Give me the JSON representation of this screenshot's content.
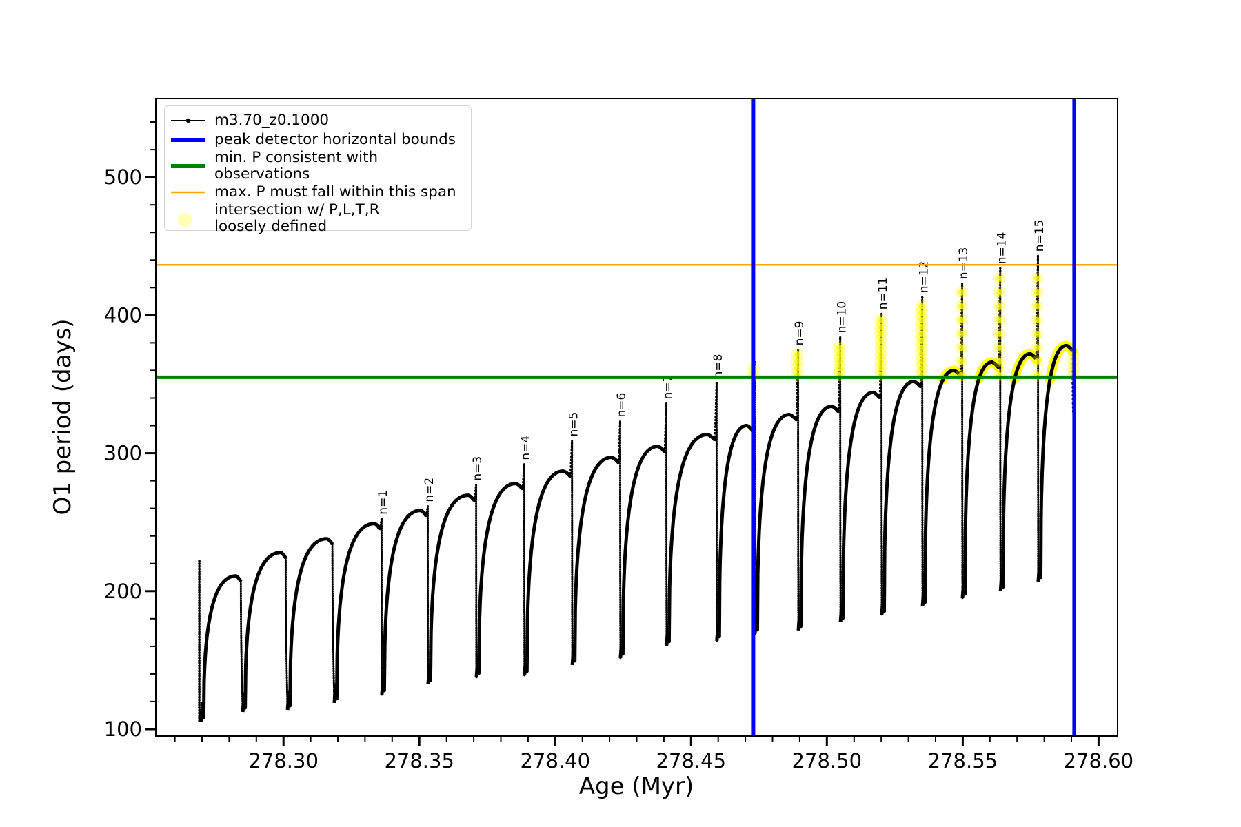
{
  "chart_data": {
    "type": "line",
    "title": "",
    "xlabel": "Age (Myr)",
    "ylabel": "O1 period (days)",
    "xlim": [
      278.253,
      278.607
    ],
    "ylim": [
      95,
      557
    ],
    "xticks": [
      278.3,
      278.35,
      278.4,
      278.45,
      278.5,
      278.55,
      278.6
    ],
    "yticks": [
      100,
      200,
      300,
      400,
      500
    ],
    "minor_xtick_step": 0.01,
    "minor_ytick_step": 20,
    "grid": false,
    "legend_position": "upper left",
    "series_name": "m3.70_z0.1000",
    "series_color": "#000000",
    "hlines": [
      {
        "value": 355.0,
        "color": "#008000",
        "width": 5,
        "label": "min. P consistent with observations"
      },
      {
        "value": 436.5,
        "color": "#ffa500",
        "width": 2.5,
        "label": "max. P must fall within this span"
      }
    ],
    "vlines": [
      {
        "value": 278.473,
        "color": "#0000ff",
        "width": 5,
        "label": "peak detector horizontal bounds"
      },
      {
        "value": 278.591,
        "color": "#0000ff",
        "width": 5,
        "label": "peak detector horizontal bounds"
      }
    ],
    "lead_in": {
      "x": 278.269,
      "y_from": 222,
      "y_to": 105.5
    },
    "cycles": [
      {
        "n": null,
        "min": [
          278.2697,
          105.5
        ],
        "arch": [
          278.2825,
          211.0
        ],
        "spike": [
          278.2843,
          212.0
        ]
      },
      {
        "n": null,
        "min": [
          278.285,
          112.5
        ],
        "arch": [
          278.299,
          228.0
        ],
        "spike": [
          278.3008,
          229.5
        ]
      },
      {
        "n": null,
        "min": [
          278.3015,
          114.0
        ],
        "arch": [
          278.316,
          238.0
        ],
        "spike": [
          278.318,
          240.0
        ]
      },
      {
        "n": "n=1",
        "min": [
          278.3187,
          119.0
        ],
        "arch": [
          278.3335,
          249.0
        ],
        "spike": [
          278.3355,
          252.5
        ]
      },
      {
        "n": "n=2",
        "min": [
          278.3362,
          125.0
        ],
        "arch": [
          278.3505,
          258.5
        ],
        "spike": [
          278.3525,
          261.5
        ]
      },
      {
        "n": "n=3",
        "min": [
          278.3532,
          132.5
        ],
        "arch": [
          278.368,
          269.5
        ],
        "spike": [
          278.3703,
          277.0
        ]
      },
      {
        "n": "n=4",
        "min": [
          278.371,
          137.5
        ],
        "arch": [
          278.3855,
          278.0
        ],
        "spike": [
          278.388,
          292.0
        ]
      },
      {
        "n": "n=5",
        "min": [
          278.3887,
          139.0
        ],
        "arch": [
          278.403,
          287.0
        ],
        "spike": [
          278.4056,
          309.0
        ]
      },
      {
        "n": "n=6",
        "min": [
          278.4063,
          146.5
        ],
        "arch": [
          278.4208,
          297.0
        ],
        "spike": [
          278.4233,
          323.0
        ]
      },
      {
        "n": "n=7",
        "min": [
          278.424,
          151.5
        ],
        "arch": [
          278.4378,
          305.0
        ],
        "spike": [
          278.4403,
          336.0
        ]
      },
      {
        "n": "n=8",
        "min": [
          278.441,
          160.5
        ],
        "arch": [
          278.456,
          313.5
        ],
        "spike": [
          278.4588,
          351.0
        ]
      },
      {
        "n": null,
        "min": [
          278.4595,
          164.0
        ],
        "arch": [
          278.4705,
          320.0
        ],
        "spike": [
          278.4728,
          366.0
        ]
      },
      {
        "n": "n=9",
        "min": [
          278.4735,
          169.0
        ],
        "arch": [
          278.4862,
          328.0
        ],
        "spike": [
          278.4888,
          375.0
        ]
      },
      {
        "n": "n=10",
        "min": [
          278.4895,
          171.5
        ],
        "arch": [
          278.5018,
          334.0
        ],
        "spike": [
          278.5043,
          384.0
        ]
      },
      {
        "n": "n=11",
        "min": [
          278.505,
          177.5
        ],
        "arch": [
          278.517,
          344.0
        ],
        "spike": [
          278.5195,
          401.0
        ]
      },
      {
        "n": "n=12",
        "min": [
          278.5202,
          182.5
        ],
        "arch": [
          278.532,
          352.0
        ],
        "spike": [
          278.5345,
          413.0
        ]
      },
      {
        "n": "n=13",
        "min": [
          278.5352,
          189.0
        ],
        "arch": [
          278.5468,
          360.0
        ],
        "spike": [
          278.5492,
          423.0
        ]
      },
      {
        "n": "n=14",
        "min": [
          278.5499,
          195.0
        ],
        "arch": [
          278.5608,
          366.0
        ],
        "spike": [
          278.5632,
          434.0
        ]
      },
      {
        "n": "n=15",
        "min": [
          278.5639,
          200.0
        ],
        "arch": [
          278.5748,
          372.0
        ],
        "spike": [
          278.5771,
          443.0
        ]
      },
      {
        "n": null,
        "min": [
          278.5778,
          207.0
        ],
        "arch": [
          278.5882,
          378.0
        ],
        "spike": [
          278.5904,
          378.0
        ]
      }
    ],
    "tail": {
      "x": 278.5906,
      "y_end": 330
    },
    "yellow": {
      "color": "#ffff00",
      "meaning": "intersection w/ P,L,T,R loosely defined",
      "spike_marker_min_y": 356.5,
      "spike_marker_cap_y": 429,
      "arc_threshold_y": 353
    }
  },
  "legend": {
    "entries": [
      {
        "type": "line-dot",
        "color": "#000000",
        "lw": 2,
        "label": "m3.70_z0.1000"
      },
      {
        "type": "line",
        "color": "#0000ff",
        "lw": 6,
        "label": "peak detector horizontal bounds"
      },
      {
        "type": "line",
        "color": "#008000",
        "lw": 6,
        "label": "min. P consistent with observations"
      },
      {
        "type": "line",
        "color": "#ffa500",
        "lw": 2.5,
        "label": "max. P must fall within this span"
      },
      {
        "type": "circle",
        "color": "rgba(255,255,0,0.28)",
        "lw": 0,
        "label": "intersection w/ P,L,T,R\nloosely defined"
      }
    ]
  }
}
